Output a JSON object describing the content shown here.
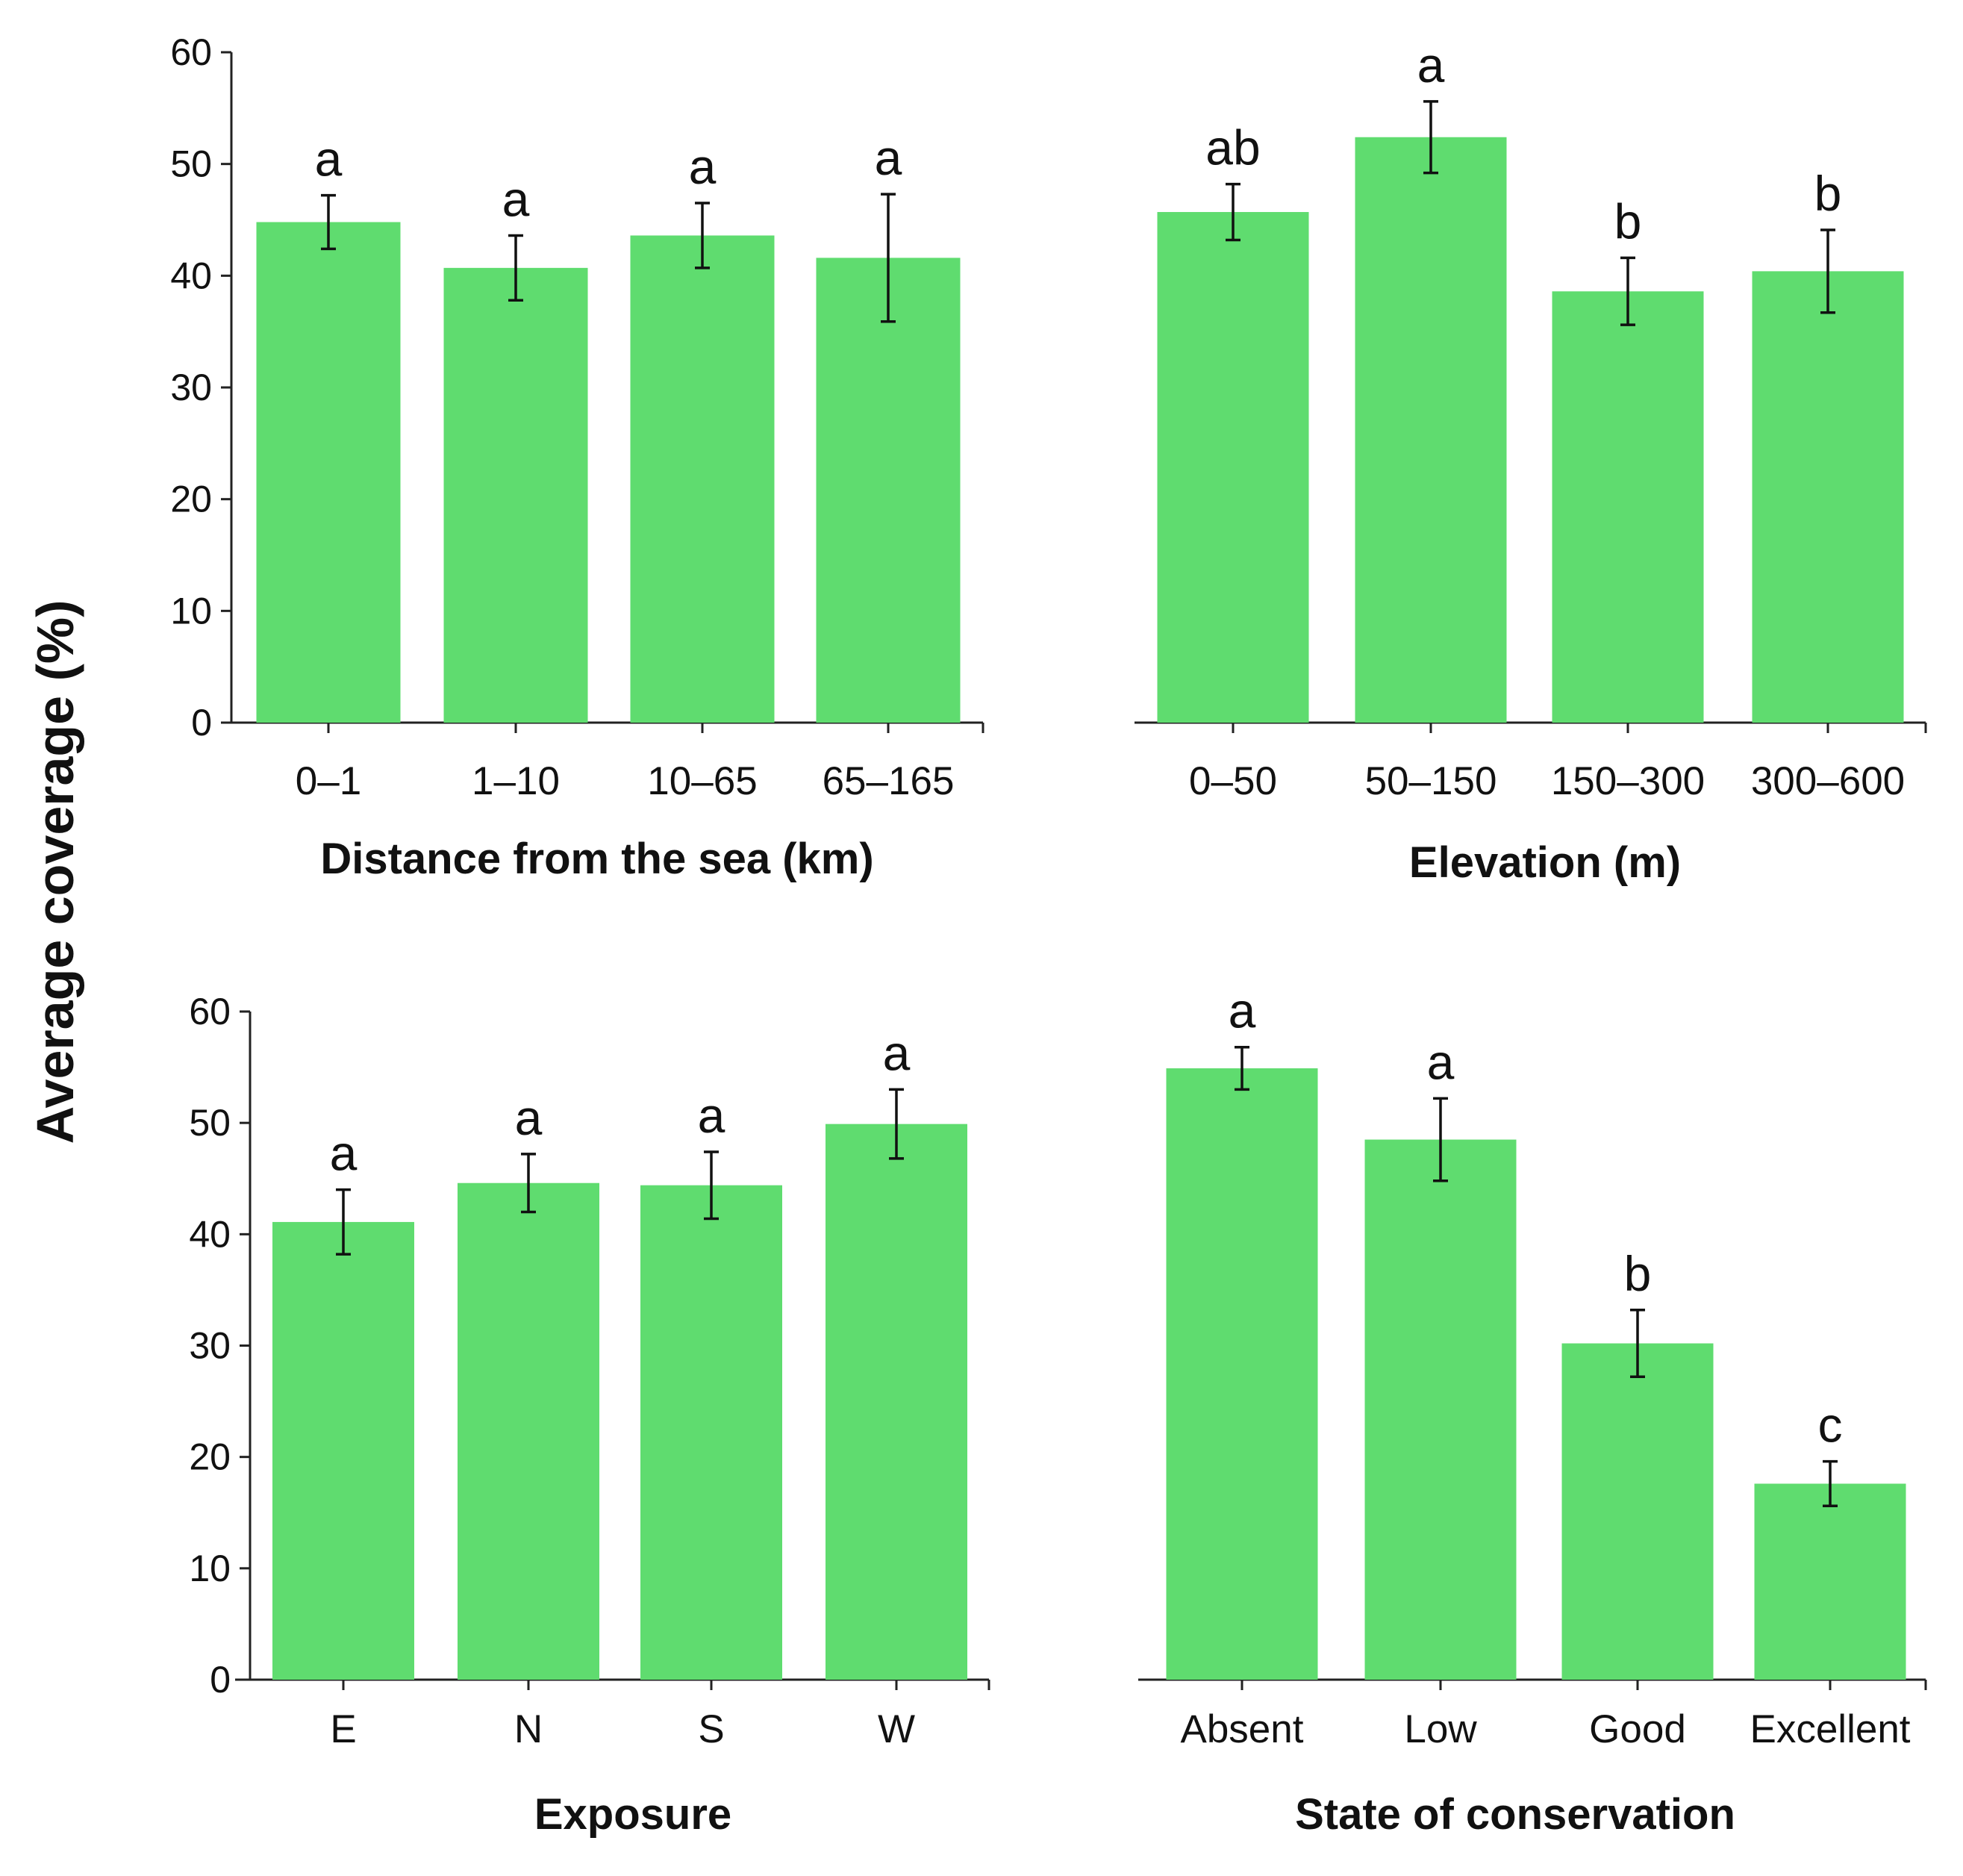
{
  "figure": {
    "ylabel": "Average coverage (%)",
    "bar_color": "#5fdc6f",
    "axis_color": "#222222",
    "error_color": "#111111"
  },
  "chart_data": [
    {
      "type": "bar",
      "xlabel": "Distance from the sea (km)",
      "ylabel": "Average coverage (%)",
      "ylim": [
        0,
        60
      ],
      "yticks": [
        0,
        10,
        20,
        30,
        40,
        50,
        60
      ],
      "show_yticks": true,
      "categories": [
        "0–1",
        "1–10",
        "10–65",
        "65–165"
      ],
      "values": [
        44.8,
        40.7,
        43.6,
        41.6
      ],
      "errors": [
        2.4,
        2.9,
        2.9,
        5.7
      ],
      "letters": [
        "a",
        "a",
        "a",
        "a"
      ],
      "grid": false
    },
    {
      "type": "bar",
      "xlabel": "Elevation (m)",
      "ylabel": "",
      "ylim": [
        0,
        60
      ],
      "yticks": [],
      "show_yticks": false,
      "categories": [
        "0–50",
        "50–150",
        "150–300",
        "300–600"
      ],
      "values": [
        45.7,
        52.4,
        38.6,
        40.4
      ],
      "errors": [
        2.5,
        3.2,
        3.0,
        3.7
      ],
      "letters": [
        "ab",
        "a",
        "b",
        "b"
      ],
      "grid": false
    },
    {
      "type": "bar",
      "xlabel": "Exposure",
      "ylabel": "Average coverage (%)",
      "ylim": [
        0,
        60
      ],
      "yticks": [
        0,
        10,
        20,
        30,
        40,
        50,
        60
      ],
      "show_yticks": true,
      "categories": [
        "E",
        "N",
        "S",
        "W"
      ],
      "values": [
        41.1,
        44.6,
        44.4,
        49.9
      ],
      "errors": [
        2.9,
        2.6,
        3.0,
        3.1
      ],
      "letters": [
        "a",
        "a",
        "a",
        "a"
      ],
      "grid": false
    },
    {
      "type": "bar",
      "xlabel": "State of conservation",
      "ylabel": "",
      "ylim": [
        0,
        60
      ],
      "yticks": [],
      "show_yticks": false,
      "categories": [
        "Absent",
        "Low",
        "Good",
        "Excellent"
      ],
      "values": [
        54.9,
        48.5,
        30.2,
        17.6
      ],
      "errors": [
        1.9,
        3.7,
        3.0,
        2.0
      ],
      "letters": [
        "a",
        "a",
        "b",
        "c"
      ],
      "grid": false
    }
  ]
}
